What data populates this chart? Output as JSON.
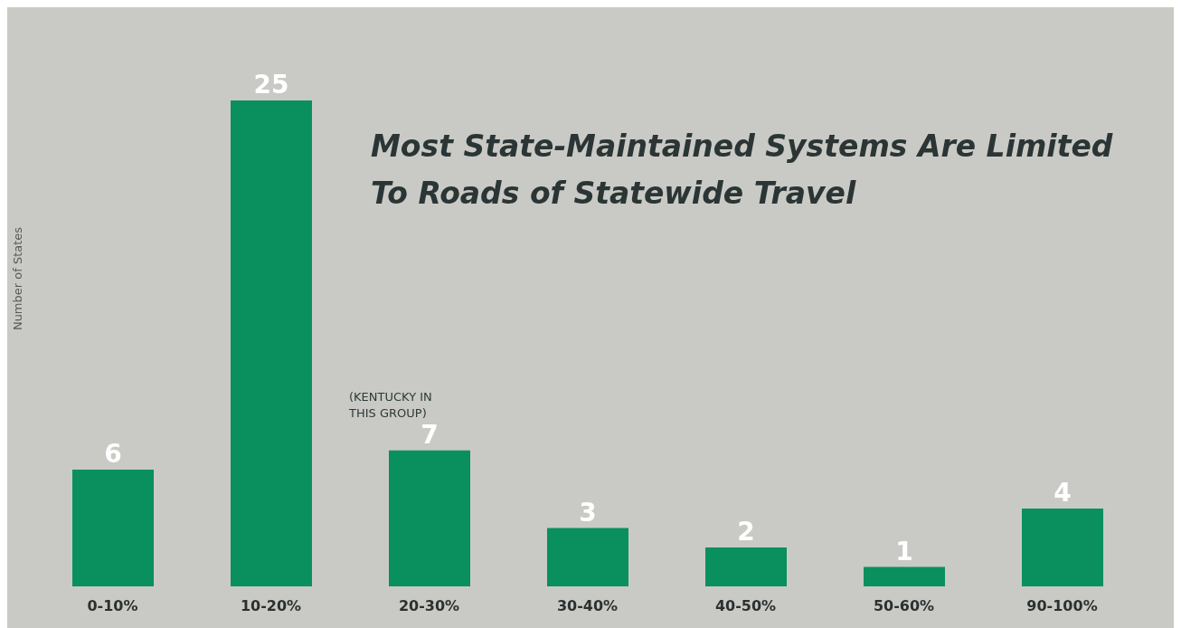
{
  "chart_data": {
    "type": "bar",
    "title": "Most State-Maintained Systems Are Limited To Roads of Statewide Travel",
    "ylabel": "Number of States",
    "categories": [
      "0-10%",
      "10-20%",
      "20-30%",
      "30-40%",
      "40-50%",
      "50-60%",
      "90-100%"
    ],
    "values": [
      6,
      25,
      7,
      3,
      2,
      1,
      4
    ],
    "color": "#0a8f5e",
    "data_labels": true,
    "annotations": [
      "(KENTUCKY IN THIS GROUP)"
    ]
  }
}
